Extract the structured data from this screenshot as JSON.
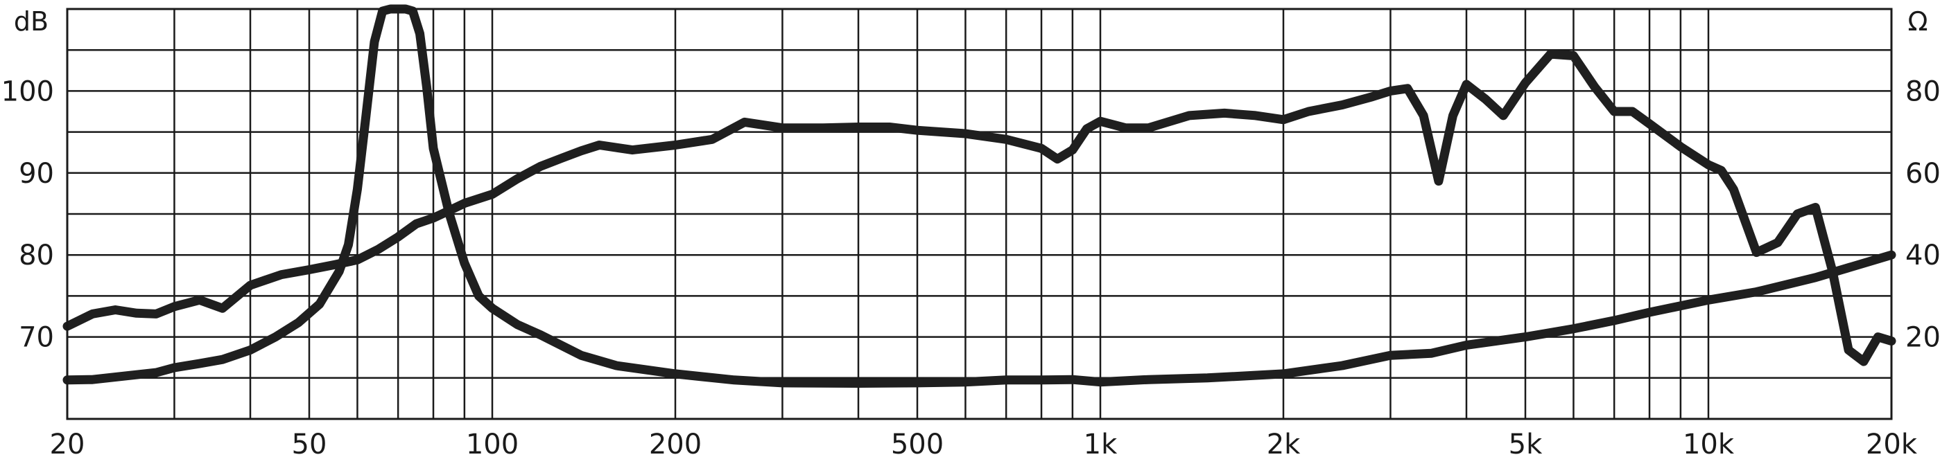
{
  "chart_data": {
    "type": "line",
    "x_scale": "log",
    "xlim": [
      20,
      20000
    ],
    "x_ticks": [
      20,
      50,
      100,
      200,
      500,
      1000,
      2000,
      5000,
      10000,
      20000
    ],
    "x_tick_labels": [
      "20",
      "50",
      "100",
      "200",
      "500",
      "1k",
      "2k",
      "5k",
      "10k",
      "20k"
    ],
    "left_axis": {
      "label": "dB",
      "ylim": [
        60,
        110
      ],
      "ticks": [
        70,
        80,
        90,
        100
      ],
      "tick_labels": [
        "70",
        "80",
        "90",
        "100"
      ]
    },
    "right_axis": {
      "label": "Ω",
      "ylim": [
        0,
        100
      ],
      "ticks": [
        20,
        40,
        60,
        80
      ],
      "tick_labels": [
        "20",
        "40",
        "60",
        "80"
      ]
    },
    "grid": true,
    "line_color": "#1f1f1f",
    "grid_color": "#1a1a1a",
    "series": [
      {
        "axis": "left",
        "x": [
          20,
          22,
          24,
          26,
          28,
          30,
          33,
          36,
          40,
          45,
          50,
          55,
          60,
          65,
          70,
          75,
          80,
          90,
          100,
          110,
          120,
          130,
          140,
          150,
          170,
          200,
          230,
          260,
          300,
          350,
          400,
          450,
          500,
          600,
          700,
          800,
          850,
          900,
          950,
          1000,
          1100,
          1200,
          1400,
          1600,
          1800,
          2000,
          2200,
          2500,
          2800,
          3000,
          3200,
          3400,
          3600,
          3800,
          4000,
          4300,
          4600,
          5000,
          5500,
          6000,
          6500,
          7000,
          7500,
          8000,
          9000,
          10000,
          10500,
          11000,
          12000,
          13000,
          14000,
          15000,
          16000,
          17000,
          18000,
          19000,
          20000
        ],
        "y": [
          71.3,
          72.8,
          73.3,
          72.9,
          72.8,
          73.7,
          74.5,
          73.5,
          76.3,
          77.6,
          78.2,
          78.8,
          79.4,
          80.7,
          82.2,
          83.8,
          84.5,
          86.3,
          87.4,
          89.3,
          90.8,
          91.8,
          92.7,
          93.4,
          92.8,
          93.4,
          94.1,
          96.2,
          95.5,
          95.5,
          95.6,
          95.6,
          95.2,
          94.8,
          94.1,
          93.0,
          91.7,
          92.8,
          95.4,
          96.3,
          95.5,
          95.5,
          97.0,
          97.3,
          97.0,
          96.5,
          97.5,
          98.3,
          99.3,
          100.0,
          100.3,
          97.0,
          89.0,
          97.0,
          100.8,
          99.0,
          97.0,
          101.0,
          104.5,
          104.3,
          100.5,
          97.5,
          97.5,
          96.0,
          93.2,
          91.0,
          90.3,
          88.0,
          80.3,
          81.5,
          85.0,
          85.8,
          78.0,
          68.4,
          67.0,
          70.0,
          69.5
        ]
      },
      {
        "axis": "right",
        "x": [
          20,
          22,
          25,
          28,
          30,
          33,
          36,
          40,
          44,
          48,
          52,
          56,
          58,
          60,
          62,
          64,
          66,
          68,
          70,
          72,
          74,
          76,
          78,
          80,
          85,
          90,
          95,
          100,
          110,
          120,
          140,
          160,
          200,
          250,
          300,
          400,
          500,
          600,
          700,
          800,
          900,
          1000,
          1200,
          1500,
          2000,
          2500,
          3000,
          3500,
          4000,
          5000,
          6000,
          7000,
          8000,
          10000,
          12000,
          15000,
          20000
        ],
        "y": [
          9.5,
          9.6,
          10.5,
          11.3,
          12.5,
          13.5,
          14.5,
          16.8,
          20.0,
          23.5,
          28.0,
          36.0,
          42.5,
          56.0,
          74.0,
          92.0,
          99.5,
          100.0,
          100.0,
          100.0,
          99.5,
          94.0,
          81.0,
          66.0,
          50.0,
          38.0,
          30.0,
          27.0,
          23.0,
          20.5,
          15.5,
          13.0,
          11.0,
          9.5,
          8.8,
          8.7,
          8.8,
          9.0,
          9.5,
          9.5,
          9.6,
          9.0,
          9.6,
          10.0,
          11.0,
          13.0,
          15.5,
          16.0,
          18.0,
          20.0,
          22.0,
          24.0,
          26.0,
          29.0,
          31.0,
          34.5,
          40.0
        ]
      }
    ]
  }
}
